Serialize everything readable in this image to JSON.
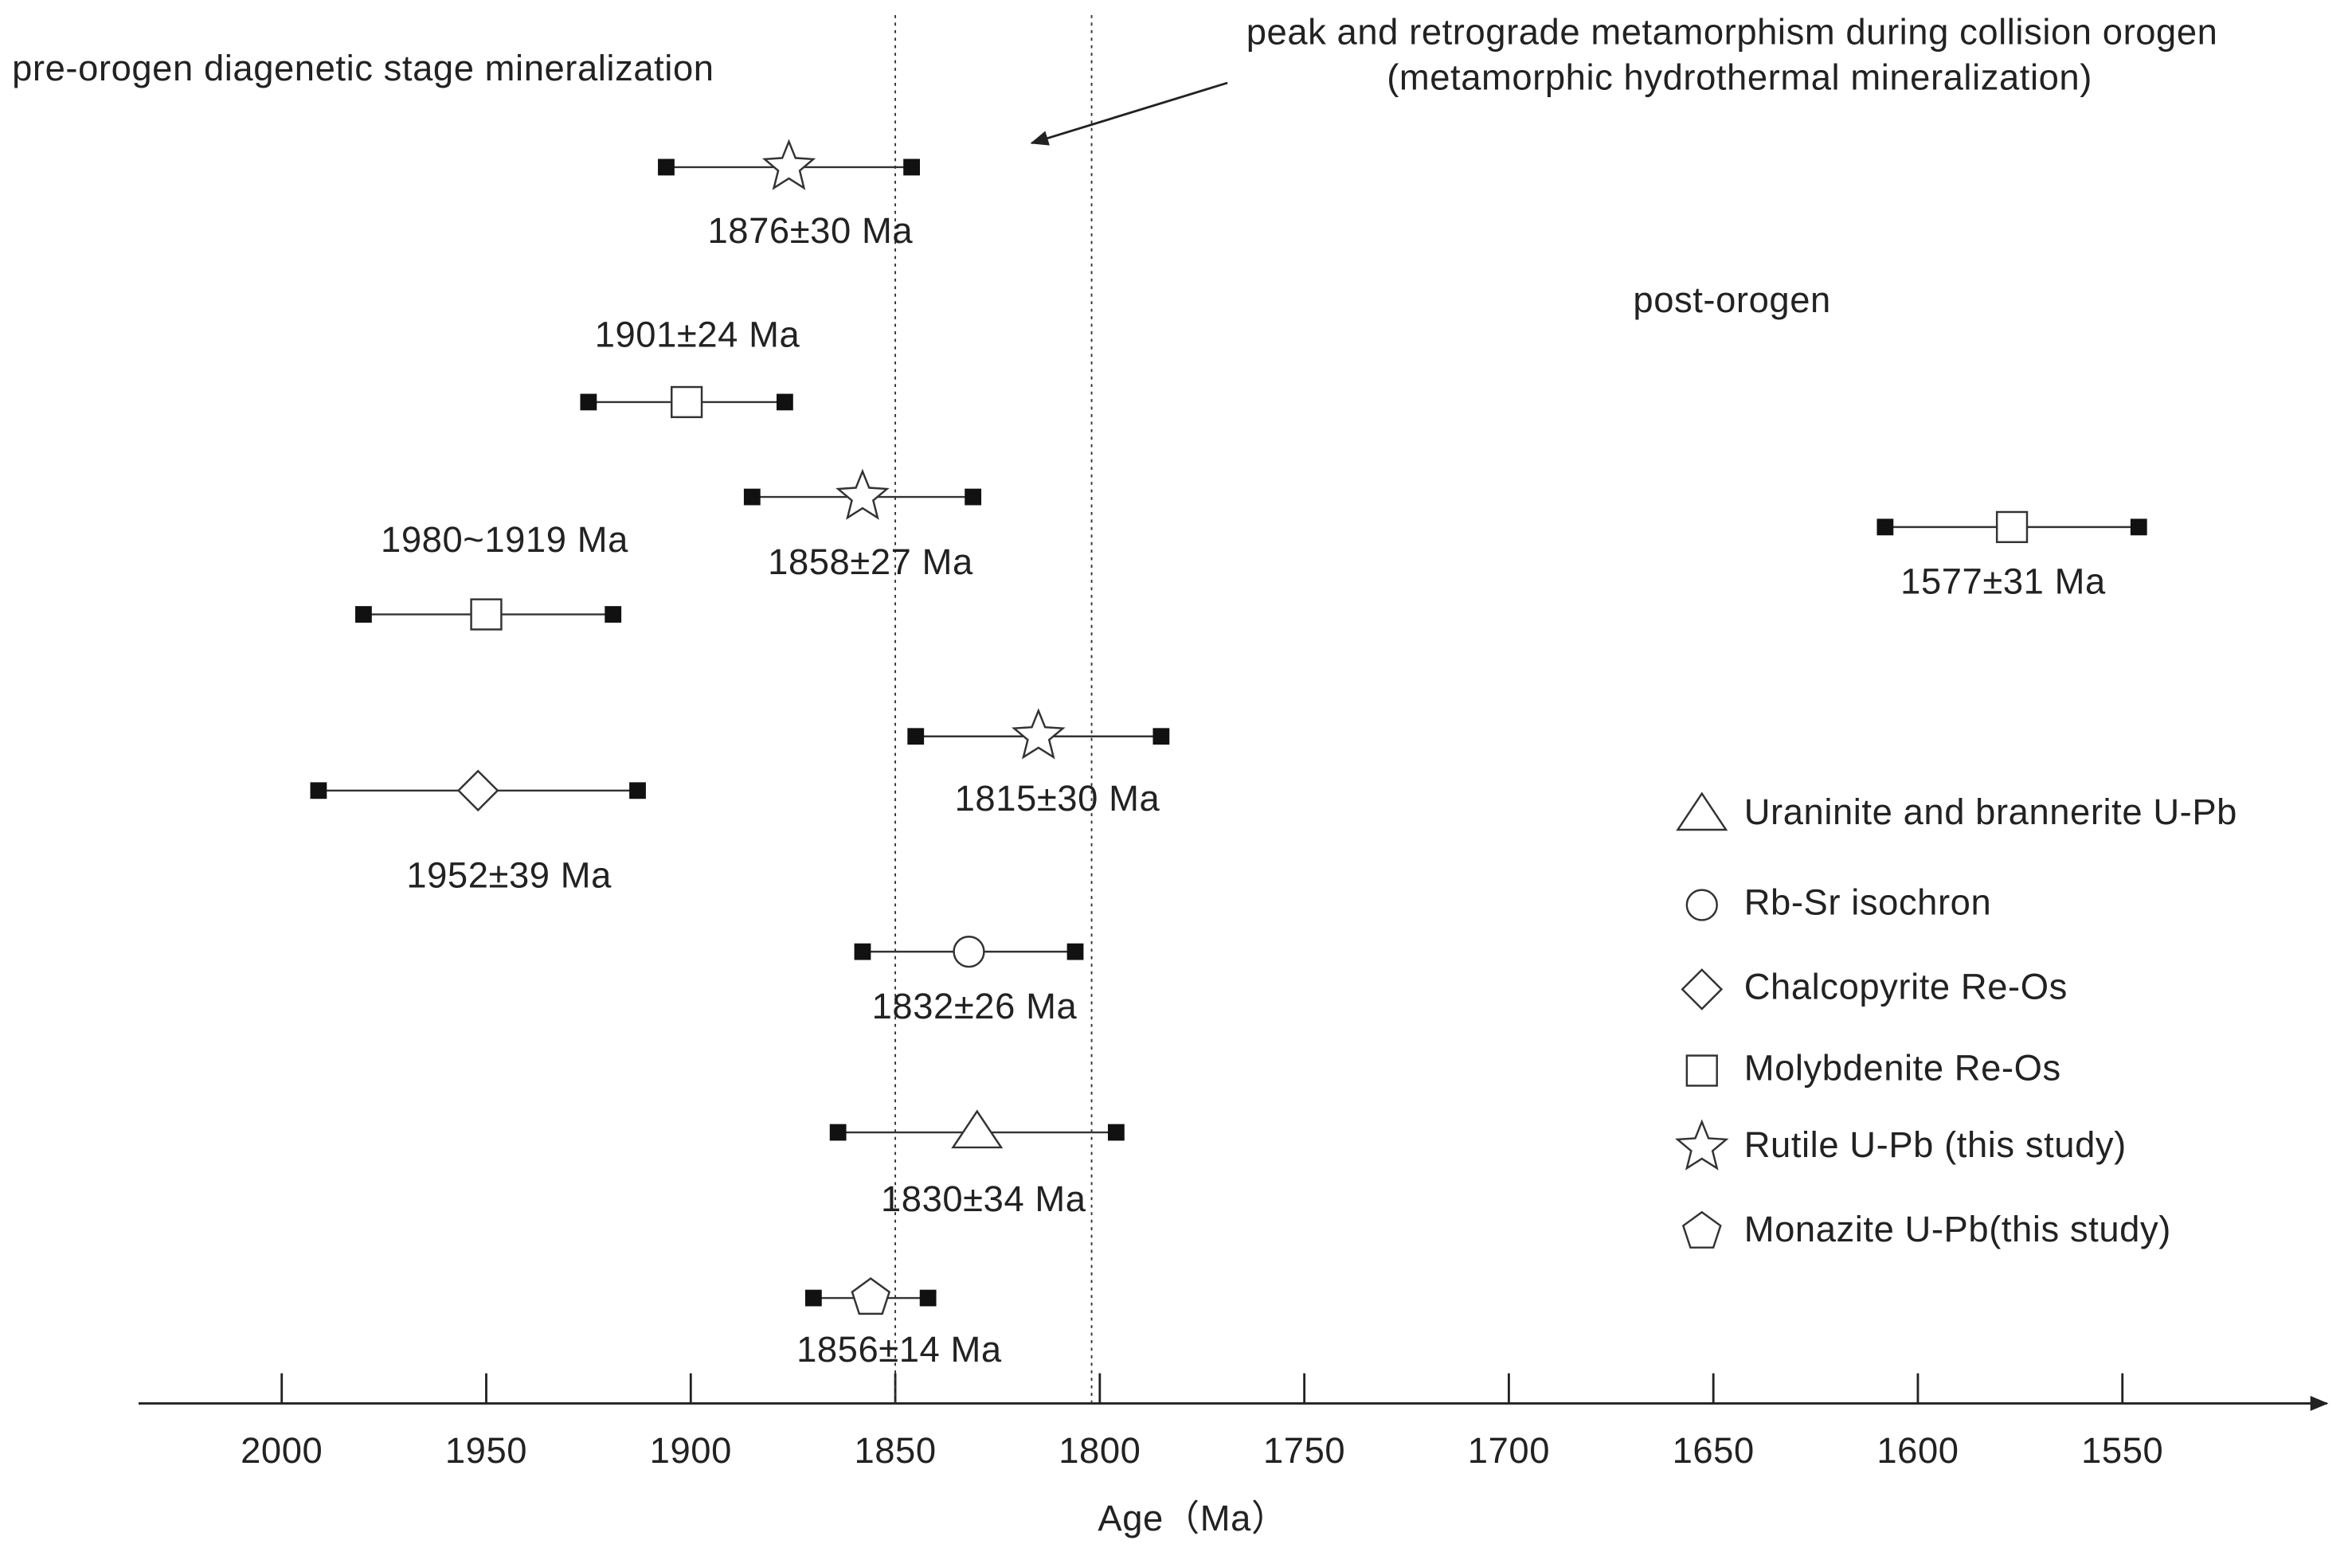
{
  "chart_data": {
    "type": "errorbar",
    "xlabel": "Age（Ma）",
    "xlim": [
      2035,
      1500
    ],
    "xticks": [
      2000,
      1950,
      1900,
      1850,
      1800,
      1750,
      1700,
      1650,
      1600,
      1550
    ],
    "vlines": [
      1850,
      1802
    ],
    "annotations": [
      "pre-orogen diagenetic stage mineralization",
      "peak and retrograde metamorphism during collision orogen",
      "(metamorphic hydrothermal mineralization)",
      "post-orogen"
    ],
    "legend": [
      {
        "marker": "triangle",
        "name": "Uraninite and brannerite U-Pb"
      },
      {
        "marker": "circle",
        "name": "Rb-Sr isochron"
      },
      {
        "marker": "diamond",
        "name": "Chalcopyrite Re-Os"
      },
      {
        "marker": "square",
        "name": "Molybdenite Re-Os"
      },
      {
        "marker": "star",
        "name": "Rutile U-Pb (this study)"
      },
      {
        "marker": "pentagon",
        "name": "Monazite U-Pb(this study)"
      }
    ],
    "points": [
      {
        "marker": "star",
        "x": 1876,
        "xerr": 30,
        "label": "1876±30 Ma"
      },
      {
        "marker": "square",
        "x": 1901,
        "xerr": 24,
        "label": "1901±24 Ma"
      },
      {
        "marker": "star",
        "x": 1858,
        "xerr": 27,
        "label": "1858±27 Ma"
      },
      {
        "marker": "square",
        "x": 1950,
        "xrange": [
          1980,
          1919
        ],
        "label": "1980~1919 Ma"
      },
      {
        "marker": "diamond",
        "x": 1952,
        "xerr": 39,
        "label": "1952±39 Ma"
      },
      {
        "marker": "star",
        "x": 1815,
        "xerr": 30,
        "label": "1815±30 Ma"
      },
      {
        "marker": "circle",
        "x": 1832,
        "xerr": 26,
        "label": "1832±26 Ma"
      },
      {
        "marker": "triangle",
        "x": 1830,
        "xerr": 34,
        "label": "1830±34 Ma"
      },
      {
        "marker": "pentagon",
        "x": 1856,
        "xerr": 14,
        "label": "1856±14 Ma"
      },
      {
        "marker": "square",
        "x": 1577,
        "xerr": 31,
        "label": "1577±31 Ma"
      }
    ]
  }
}
